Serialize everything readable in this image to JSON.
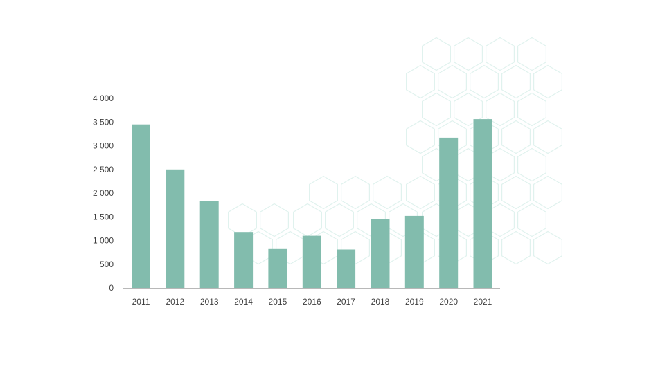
{
  "chart_data": {
    "type": "bar",
    "categories": [
      "2011",
      "2012",
      "2013",
      "2014",
      "2015",
      "2016",
      "2017",
      "2018",
      "2019",
      "2020",
      "2021"
    ],
    "values": [
      3450,
      2500,
      1830,
      1180,
      820,
      1100,
      810,
      1460,
      1520,
      3170,
      3560
    ],
    "title": "",
    "xlabel": "",
    "ylabel": "",
    "ylim": [
      0,
      4000
    ],
    "yticks": [
      0,
      500,
      1000,
      1500,
      2000,
      2500,
      3000,
      3500,
      4000
    ],
    "ytick_labels": [
      "0",
      "500",
      "1 000",
      "1 500",
      "2 000",
      "2 500",
      "3 000",
      "3 500",
      "4 000"
    ],
    "grid": false,
    "legend": "none",
    "colors": {
      "bar": "#82bcad",
      "axis": "#b8b8b8",
      "text": "#3e3e3e",
      "pattern": "#e0f2ee"
    }
  }
}
